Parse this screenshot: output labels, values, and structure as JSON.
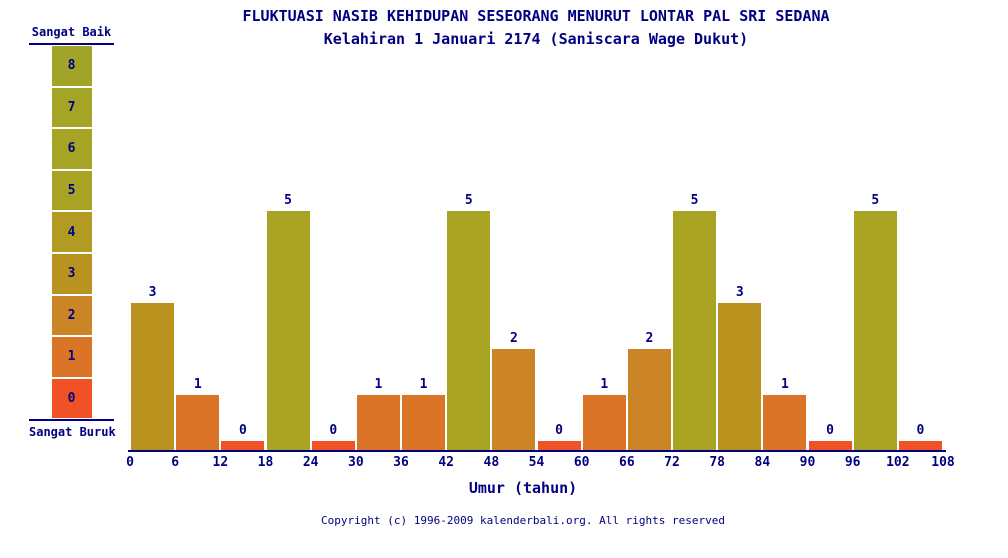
{
  "header": {
    "title": "FLUKTUASI NASIB KEHIDUPAN SESEORANG MENURUT LONTAR PAL SRI SEDANA",
    "subtitle": "Kelahiran 1 Januari 2174 (Saniscara Wage Dukut)"
  },
  "legend": {
    "top_label": "Sangat Baik",
    "bottom_label": "Sangat Buruk",
    "levels": [
      {
        "value": 8,
        "color": "#A2A428"
      },
      {
        "value": 7,
        "color": "#A4A426"
      },
      {
        "value": 6,
        "color": "#A6A424"
      },
      {
        "value": 5,
        "color": "#A8A322"
      },
      {
        "value": 4,
        "color": "#B19B20"
      },
      {
        "value": 3,
        "color": "#BA921E"
      },
      {
        "value": 2,
        "color": "#CB8526"
      },
      {
        "value": 1,
        "color": "#DC7428"
      },
      {
        "value": 0,
        "color": "#F05226"
      }
    ]
  },
  "chart_data": {
    "type": "bar",
    "title": "FLUKTUASI NASIB KEHIDUPAN SESEORANG MENURUT LONTAR PAL SRI SEDANA",
    "subtitle": "Kelahiran 1 Januari 2174 (Saniscara Wage Dukut)",
    "xlabel": "Umur (tahun)",
    "ylabel": "",
    "ylim": [
      0,
      8
    ],
    "bin_width": 6,
    "x_bin_start": [
      0,
      6,
      12,
      18,
      24,
      30,
      36,
      42,
      48,
      54,
      60,
      66,
      72,
      78,
      84,
      90,
      96,
      102
    ],
    "values": [
      3,
      1,
      0,
      5,
      0,
      1,
      1,
      5,
      2,
      0,
      1,
      2,
      5,
      3,
      1,
      0,
      5,
      0
    ],
    "x_ticks": [
      0,
      6,
      12,
      18,
      24,
      30,
      36,
      42,
      48,
      54,
      60,
      66,
      72,
      78,
      84,
      90,
      96,
      102,
      108
    ],
    "value_colors": {
      "0": "#F05226",
      "1": "#DC7428",
      "2": "#CB8526",
      "3": "#BA921E",
      "4": "#B19B20",
      "5": "#A8A322",
      "6": "#A6A424",
      "7": "#A4A426",
      "8": "#A2A428"
    },
    "legend_scale_labels": {
      "max": "Sangat Baik",
      "min": "Sangat Buruk"
    },
    "grid": false
  },
  "footer": {
    "copyright": "Copyright (c) 1996-2009 kalenderbali.org. All rights reserved"
  },
  "colors": {
    "text": "#000080",
    "axis": "#000080",
    "background": "#FFFFFF"
  }
}
